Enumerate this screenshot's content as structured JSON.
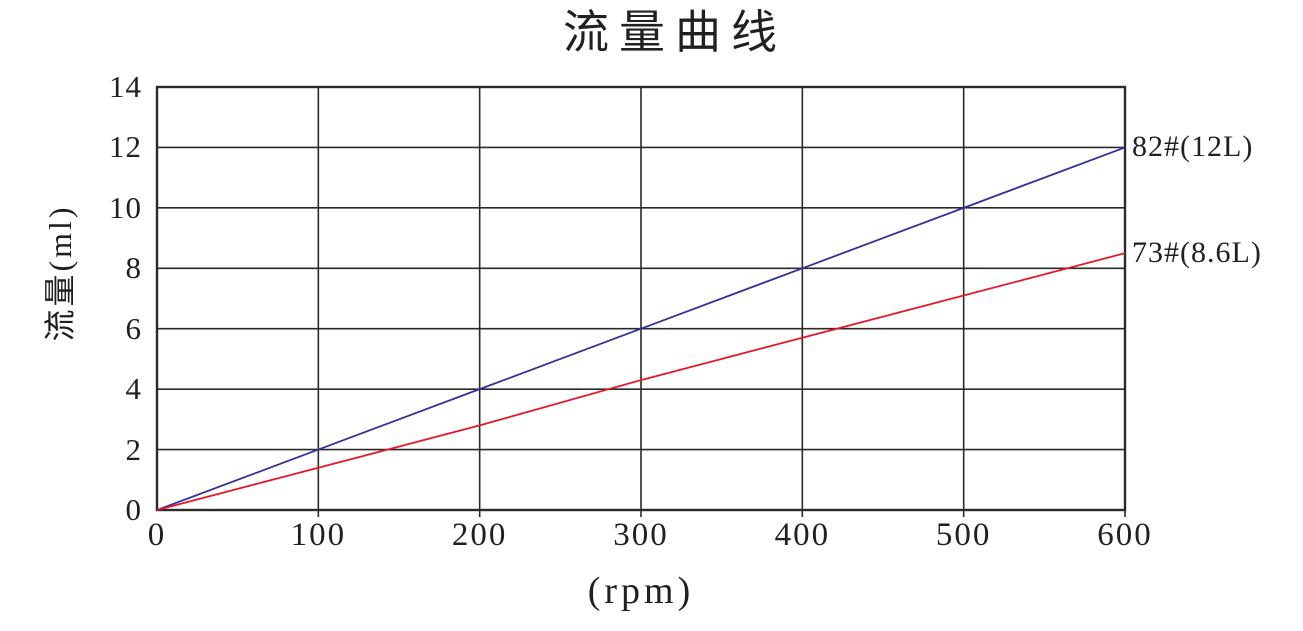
{
  "page": {
    "background_color": "#ffffff",
    "text_color": "#231f20",
    "grid_color": "#2a2a2a"
  },
  "chart_data": {
    "type": "line",
    "title": "流量曲线",
    "xlabel": "(rpm)",
    "ylabel": "流量(ml)",
    "xlim": [
      0,
      600
    ],
    "ylim": [
      0,
      14
    ],
    "x_ticks": [
      0,
      100,
      200,
      300,
      400,
      500,
      600
    ],
    "y_ticks": [
      0,
      2,
      4,
      6,
      8,
      10,
      12,
      14
    ],
    "grid": "on",
    "legend_position": "right of line ends, outside plot",
    "x": [
      0,
      100,
      200,
      300,
      400,
      500,
      600
    ],
    "series": [
      {
        "name": "82#(12L)",
        "color": "#31319e",
        "values": [
          0,
          2,
          4,
          6,
          8,
          10,
          12
        ]
      },
      {
        "name": "73#(8.6L)",
        "color": "#e5172b",
        "values": [
          0,
          1.4,
          2.8,
          4.3,
          5.7,
          7.1,
          8.5
        ]
      }
    ]
  }
}
